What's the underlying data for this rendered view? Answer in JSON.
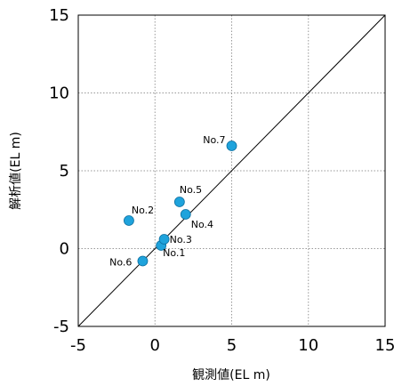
{
  "chart_data": {
    "type": "scatter",
    "title": "",
    "xlabel": "観測値(EL m)",
    "ylabel": "解析値(EL m)",
    "xlim": [
      -5,
      15
    ],
    "ylim": [
      -5,
      15
    ],
    "xticks": [
      -5,
      0,
      5,
      10,
      15
    ],
    "yticks": [
      -5,
      0,
      5,
      10,
      15
    ],
    "grid": true,
    "reference_line": "y = x",
    "point_color": "#1FA3DC",
    "points": [
      {
        "label": "No.1",
        "x": 0.4,
        "y": 0.2
      },
      {
        "label": "No.2",
        "x": -1.7,
        "y": 1.8
      },
      {
        "label": "No.3",
        "x": 0.6,
        "y": 0.6
      },
      {
        "label": "No.4",
        "x": 2.0,
        "y": 2.2
      },
      {
        "label": "No.5",
        "x": 1.6,
        "y": 3.0
      },
      {
        "label": "No.6",
        "x": -0.8,
        "y": -0.8
      },
      {
        "label": "No.7",
        "x": 5.0,
        "y": 6.6
      }
    ]
  }
}
